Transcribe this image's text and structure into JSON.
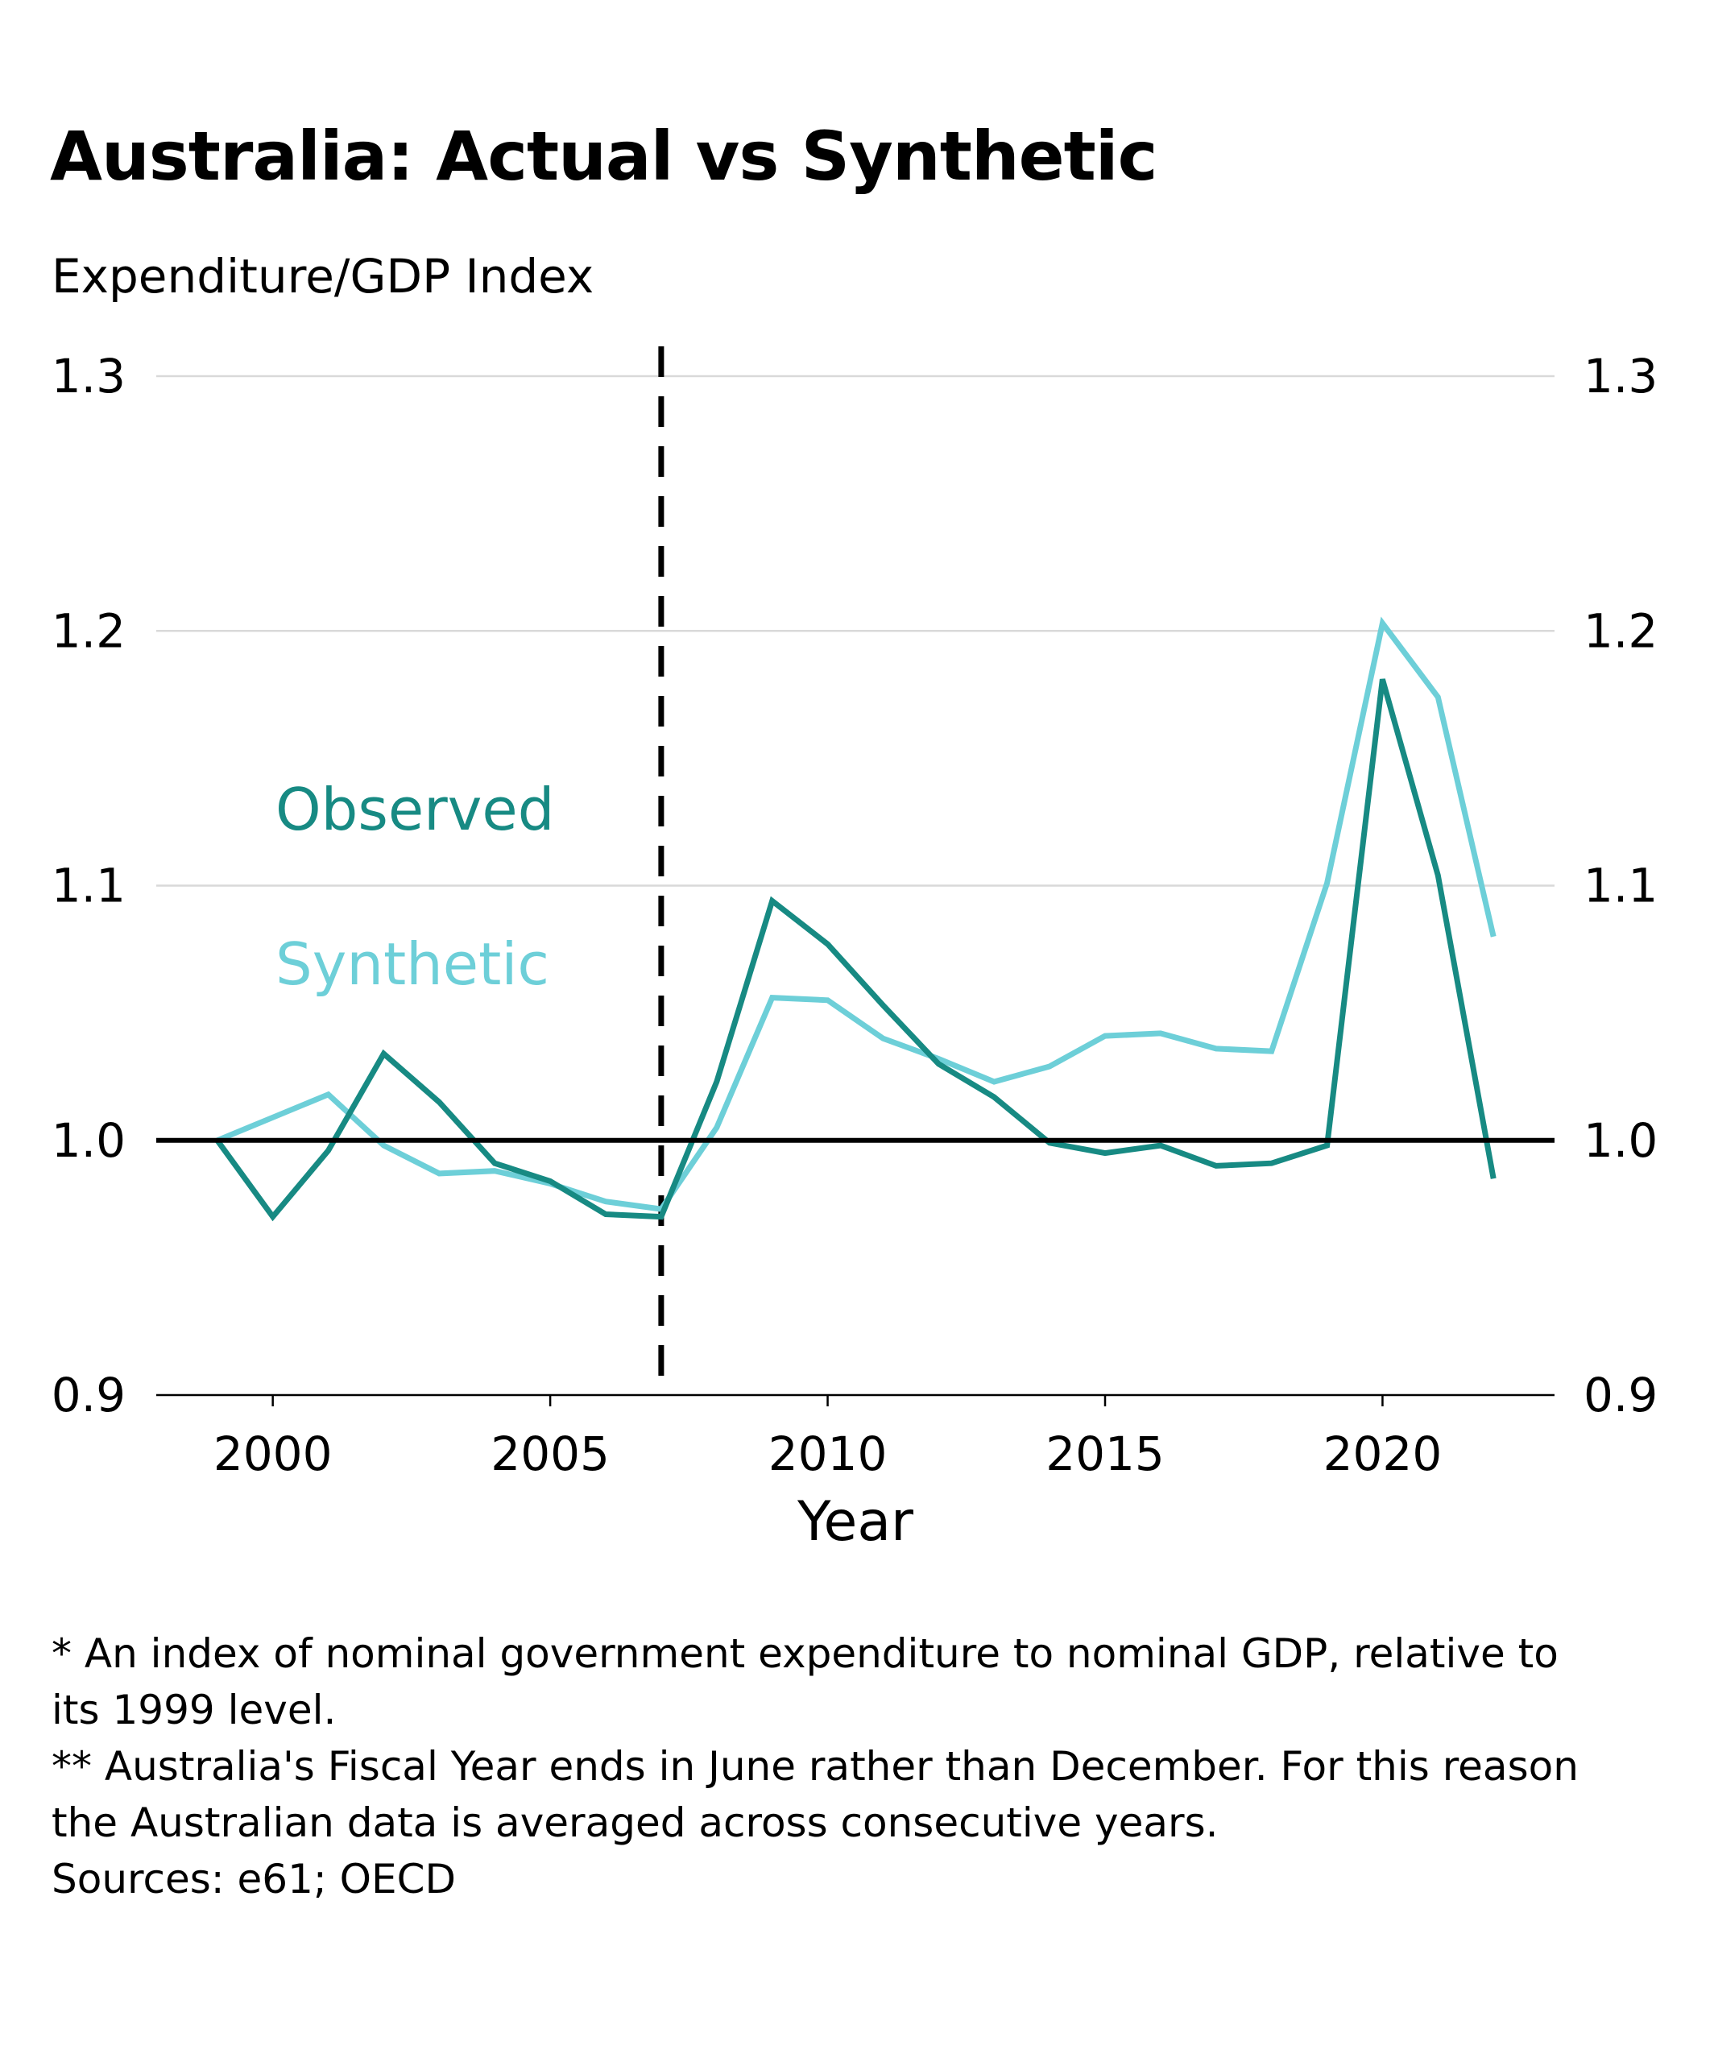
{
  "title": "Australia: Actual vs Synthetic",
  "subtitle": "Expenditure/GDP Index",
  "footnotes": [
    "* An index of nominal government expenditure to nominal GDP, relative to its 1999 level.",
    "** Australia's Fiscal Year ends in June rather than December. For this reason the Australian data is averaged across consecutive years.",
    "Sources: e61; OECD"
  ],
  "colors": {
    "observed": "#178a83",
    "synthetic": "#6dcfd8",
    "baseline": "#000000",
    "grid": "#d9d9d9",
    "treatment_line": "#000000"
  },
  "chart_data": {
    "type": "line",
    "xlabel": "Year",
    "ylabel": "",
    "xlim": [
      1997.9,
      2023.1
    ],
    "ylim": [
      0.9,
      1.3
    ],
    "xticks": [
      2000,
      2005,
      2010,
      2015,
      2020
    ],
    "yticks": [
      0.9,
      1.0,
      1.1,
      1.2,
      1.3
    ],
    "ytick_labels": [
      "0.9",
      "1.0",
      "1.1",
      "1.2",
      "1.3"
    ],
    "y_axis": "both sides",
    "grid": "horizontal",
    "baseline": 1.0,
    "treatment_year": 2007,
    "legend": "inline labels, left of treatment line",
    "x": [
      1999,
      2000,
      2001,
      2002,
      2003,
      2004,
      2005,
      2006,
      2007,
      2008,
      2009,
      2010,
      2011,
      2012,
      2013,
      2014,
      2015,
      2016,
      2017,
      2018,
      2019,
      2020,
      2021,
      2022
    ],
    "series": [
      {
        "name": "Observed",
        "values": [
          1.0,
          0.97,
          0.996,
          1.034,
          1.015,
          0.991,
          0.984,
          0.971,
          0.97,
          1.023,
          1.094,
          1.077,
          1.053,
          1.03,
          1.017,
          0.999,
          0.995,
          0.998,
          0.99,
          0.991,
          0.998,
          1.181,
          1.104,
          0.985
        ]
      },
      {
        "name": "Synthetic",
        "values": [
          1.0,
          1.009,
          1.018,
          0.998,
          0.987,
          0.988,
          0.983,
          0.976,
          0.973,
          1.005,
          1.056,
          1.055,
          1.04,
          1.032,
          1.023,
          1.029,
          1.041,
          1.042,
          1.036,
          1.035,
          1.101,
          1.203,
          1.174,
          1.08
        ]
      }
    ]
  }
}
